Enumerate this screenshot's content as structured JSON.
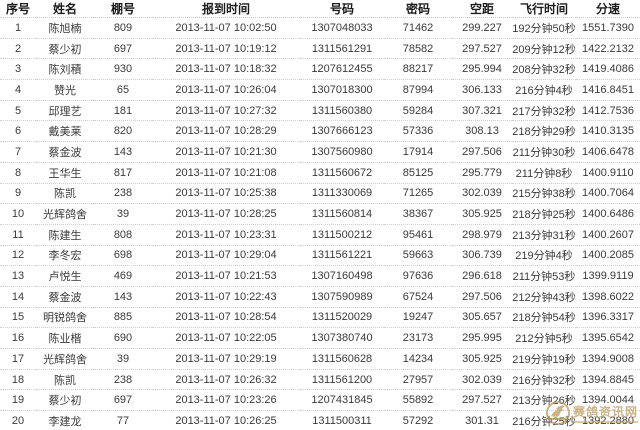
{
  "watermark": {
    "site_name": "赛鸽资讯网"
  },
  "table": {
    "columns": [
      {
        "key": "index",
        "label": "序号"
      },
      {
        "key": "name",
        "label": "姓名"
      },
      {
        "key": "loft_no",
        "label": "棚号"
      },
      {
        "key": "checkin_time",
        "label": "报到时间"
      },
      {
        "key": "ring_no",
        "label": "号码"
      },
      {
        "key": "password",
        "label": "密码"
      },
      {
        "key": "distance",
        "label": "空距"
      },
      {
        "key": "flight_time",
        "label": "飞行时间"
      },
      {
        "key": "speed",
        "label": "分速"
      }
    ],
    "rows": [
      [
        "1",
        "陈旭楠",
        "809",
        "2013-11-07 10:02:50",
        "1307048033",
        "71462",
        "299.227",
        "192分钟50秒",
        "1551.7390"
      ],
      [
        "2",
        "蔡少初",
        "697",
        "2013-11-07 10:19:12",
        "1311561291",
        "78582",
        "297.527",
        "209分钟12秒",
        "1422.2132"
      ],
      [
        "3",
        "陈刘積",
        "930",
        "2013-11-07 10:18:32",
        "1207612455",
        "88217",
        "295.994",
        "208分钟32秒",
        "1419.4086"
      ],
      [
        "4",
        "赞光",
        "65",
        "2013-11-07 10:26:04",
        "1307018300",
        "87994",
        "306.133",
        "216分钟4秒",
        "1416.8451"
      ],
      [
        "5",
        "邱理艺",
        "181",
        "2013-11-07 10:27:32",
        "1311560380",
        "59284",
        "307.321",
        "217分钟32秒",
        "1412.7536"
      ],
      [
        "6",
        "戴美莱",
        "820",
        "2013-11-07 10:28:29",
        "1307666123",
        "57336",
        "308.13",
        "218分钟29秒",
        "1410.3135"
      ],
      [
        "7",
        "蔡金波",
        "143",
        "2013-11-07 10:21:30",
        "1307560980",
        "17914",
        "297.506",
        "211分钟30秒",
        "1406.6478"
      ],
      [
        "8",
        "王华生",
        "817",
        "2013-11-07 10:21:08",
        "1311560672",
        "85125",
        "295.779",
        "211分钟8秒",
        "1400.9110"
      ],
      [
        "9",
        "陈凯",
        "238",
        "2013-11-07 10:25:38",
        "1311330069",
        "71265",
        "302.039",
        "215分钟38秒",
        "1400.7064"
      ],
      [
        "10",
        "光辉鸽舍",
        "39",
        "2013-11-07 10:28:25",
        "1311560814",
        "38367",
        "305.925",
        "218分钟25秒",
        "1400.6486"
      ],
      [
        "11",
        "陈建生",
        "808",
        "2013-11-07 10:23:31",
        "1311500212",
        "95461",
        "298.979",
        "213分钟31秒",
        "1400.2607"
      ],
      [
        "12",
        "李冬宏",
        "698",
        "2013-11-07 10:29:04",
        "1311561221",
        "59663",
        "306.739",
        "219分钟4秒",
        "1400.2085"
      ],
      [
        "13",
        "卢悦生",
        "469",
        "2013-11-07 10:21:53",
        "1307160498",
        "97636",
        "296.618",
        "211分钟53秒",
        "1399.9119"
      ],
      [
        "14",
        "蔡金波",
        "143",
        "2013-11-07 10:22:43",
        "1307590989",
        "67524",
        "297.506",
        "212分钟43秒",
        "1398.6022"
      ],
      [
        "15",
        "明锐鸽舍",
        "885",
        "2013-11-07 10:28:54",
        "1311520029",
        "19247",
        "305.657",
        "218分钟54秒",
        "1396.3317"
      ],
      [
        "16",
        "陈业楷",
        "690",
        "2013-11-07 10:22:05",
        "1307380740",
        "23173",
        "295.995",
        "212分钟5秒",
        "1395.6542"
      ],
      [
        "17",
        "光辉鸽舍",
        "39",
        "2013-11-07 10:29:19",
        "1311560628",
        "14234",
        "305.925",
        "219分钟19秒",
        "1394.9008"
      ],
      [
        "18",
        "陈凯",
        "238",
        "2013-11-07 10:26:32",
        "1311561200",
        "27957",
        "302.039",
        "216分钟32秒",
        "1394.8845"
      ],
      [
        "19",
        "蔡少初",
        "697",
        "2013-11-07 10:23:26",
        "1207431845",
        "55892",
        "297.527",
        "213分钟26秒",
        "1394.0044"
      ],
      [
        "20",
        "李建龙",
        "77",
        "2013-11-07 10:26:25",
        "1311500311",
        "57292",
        "301.31",
        "216分钟25秒",
        "1392.2880"
      ]
    ]
  }
}
